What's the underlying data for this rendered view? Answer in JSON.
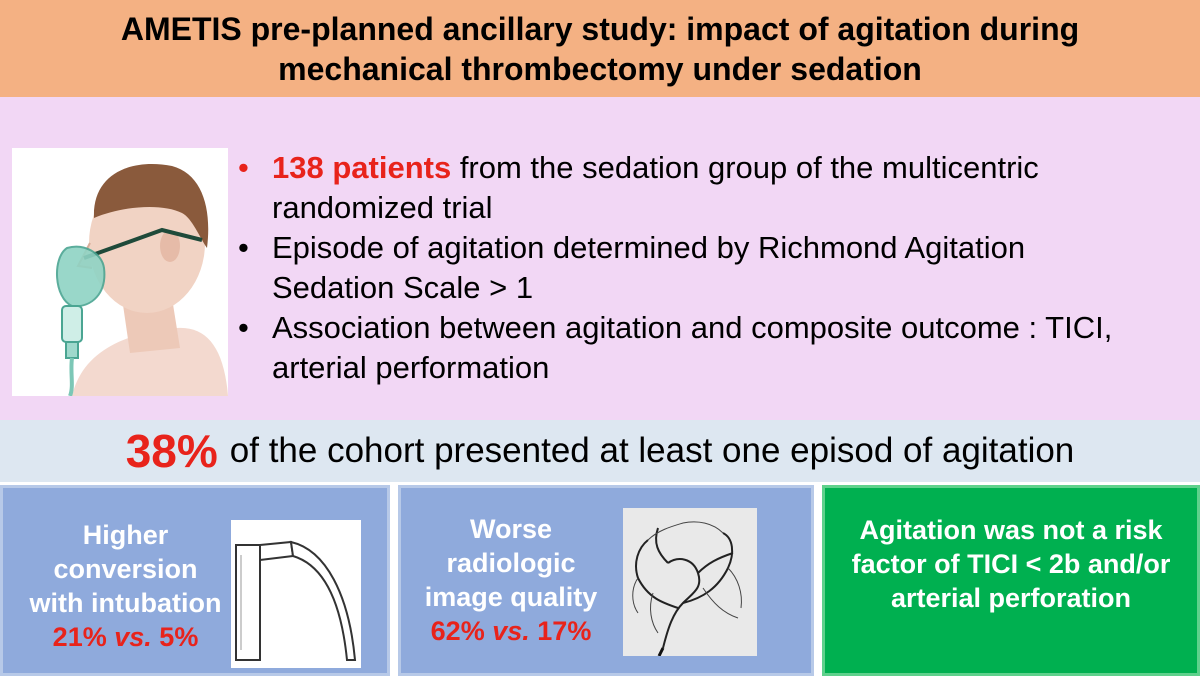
{
  "title": "AMETIS pre-planned ancillary study: impact of agitation during mechanical thrombectomy under sedation",
  "bullets": {
    "b1_highlight": "138 patients",
    "b1_rest": " from the sedation group of the multicentric randomized trial",
    "b2": "Episode of agitation determined by Richmond Agitation Sedation Scale > 1",
    "b3": "Association between agitation and composite outcome : TICI, arterial performation",
    "bullet_char": "•"
  },
  "headline": {
    "percent": "38%",
    "text": "of the cohort presented at least one episod of agitation"
  },
  "findings": {
    "intubation": {
      "label": "Higher conversion with intubation",
      "stat_a": "21%",
      "vs": "vs.",
      "stat_b": "5%"
    },
    "imaging": {
      "label": "Worse radiologic image quality",
      "stat_a": "62%",
      "vs": "vs.",
      "stat_b": "17%"
    },
    "risk": {
      "label": "Agitation was not a risk factor of TICI < 2b and/or arterial perforation"
    }
  },
  "icons": {
    "patient": "patient-oxygen-mask-icon",
    "laryngoscope": "laryngoscope-icon",
    "angiogram": "cerebral-angiogram-icon"
  },
  "colors": {
    "title_band": "#f4b183",
    "main_band": "#f2d7f5",
    "stat_band": "#dde7f1",
    "blue_box": "#8faadc",
    "green_box": "#00b050",
    "highlight_red": "#e8231b"
  }
}
